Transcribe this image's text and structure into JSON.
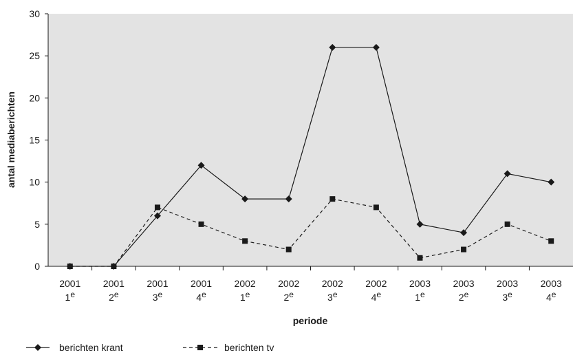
{
  "chart_data": {
    "type": "line",
    "title": "",
    "xlabel": "periode",
    "ylabel": "antal mediaberichten",
    "ylim": [
      0,
      30
    ],
    "yticks": [
      "0",
      "5",
      "10",
      "15",
      "20",
      "25",
      "30"
    ],
    "grid": false,
    "background": "#e3e3e3",
    "legend_position": "bottom-left",
    "categories": [
      {
        "year": "2001",
        "quarter": "1",
        "suffix": "e"
      },
      {
        "year": "2001",
        "quarter": "2",
        "suffix": "e"
      },
      {
        "year": "2001",
        "quarter": "3",
        "suffix": "e"
      },
      {
        "year": "2001",
        "quarter": "4",
        "suffix": "e"
      },
      {
        "year": "2002",
        "quarter": "1",
        "suffix": "e"
      },
      {
        "year": "2002",
        "quarter": "2",
        "suffix": "e"
      },
      {
        "year": "2002",
        "quarter": "3",
        "suffix": "e"
      },
      {
        "year": "2002",
        "quarter": "4",
        "suffix": "e"
      },
      {
        "year": "2003",
        "quarter": "1",
        "suffix": "e"
      },
      {
        "year": "2003",
        "quarter": "2",
        "suffix": "e"
      },
      {
        "year": "2003",
        "quarter": "3",
        "suffix": "e"
      },
      {
        "year": "2003",
        "quarter": "4",
        "suffix": "e"
      }
    ],
    "series": [
      {
        "name": "berichten krant",
        "marker": "diamond",
        "line": "solid",
        "color": "#1a1a1a",
        "values": [
          0,
          0,
          6,
          12,
          8,
          8,
          26,
          26,
          5,
          4,
          11,
          10
        ]
      },
      {
        "name": "berichten tv",
        "marker": "square",
        "line": "dashed",
        "color": "#1a1a1a",
        "values": [
          0,
          0,
          7,
          5,
          3,
          2,
          8,
          7,
          1,
          2,
          5,
          3
        ]
      }
    ]
  }
}
